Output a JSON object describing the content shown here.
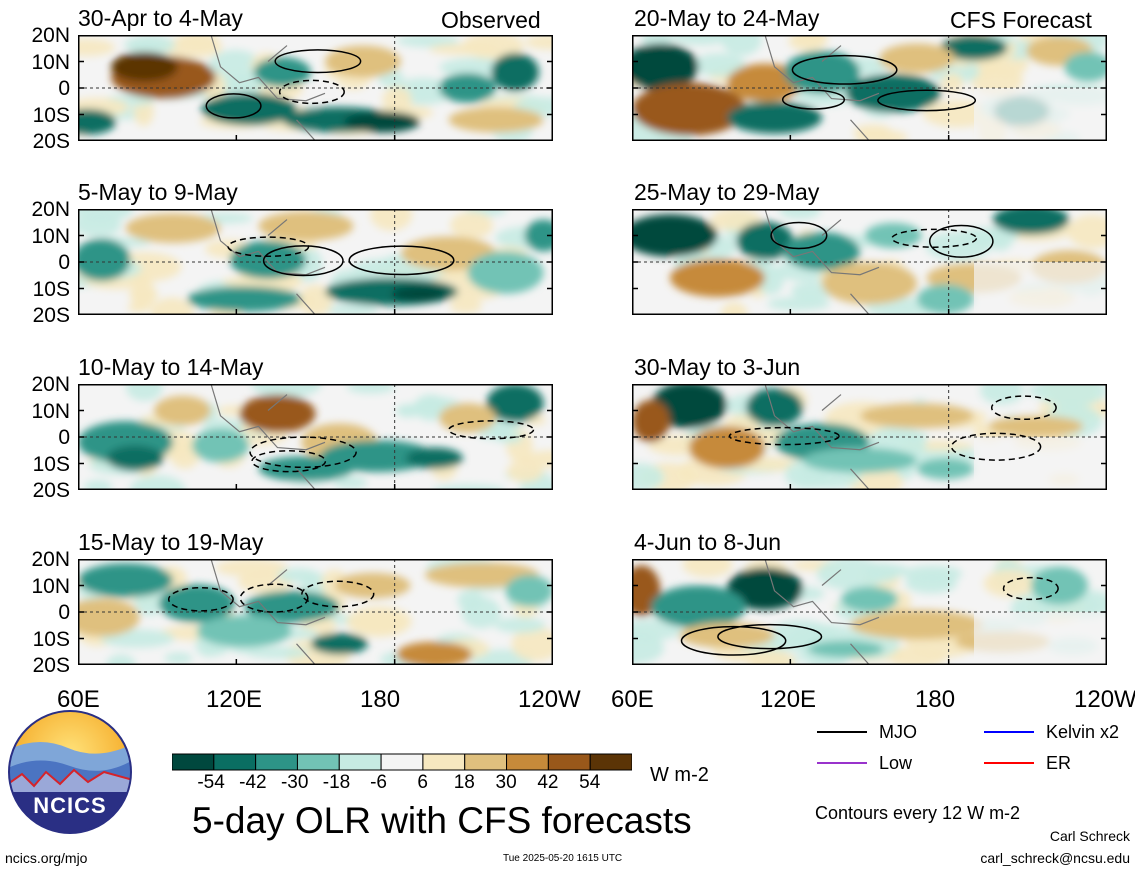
{
  "chart_data": {
    "type": "heatmap",
    "title": "5-day OLR with CFS forecasts",
    "units": "W m-2",
    "column_labels": {
      "left": "Observed",
      "right": "CFS Forecast"
    },
    "x_ticks": [
      "60E",
      "120E",
      "180",
      "120W"
    ],
    "x_range": [
      60,
      240
    ],
    "y_ticks": [
      "20N",
      "10N",
      "0",
      "10S",
      "20S"
    ],
    "y_range": [
      -20,
      20
    ],
    "color_scale": {
      "ticks": [
        "-54",
        "-42",
        "-30",
        "-18",
        "-6",
        "6",
        "18",
        "30",
        "42",
        "54"
      ],
      "colors": [
        "#00483e",
        "#0a6e62",
        "#2d9487",
        "#72c3b5",
        "#c6ebe3",
        "#f4f4f4",
        "#f6e8c0",
        "#dfc07e",
        "#c68a3a",
        "#99581a",
        "#5b3406"
      ]
    },
    "contour_note": "Contours every 12 W m-2",
    "legend": [
      {
        "label": "MJO",
        "color": "#000000"
      },
      {
        "label": "Kelvin x2",
        "color": "#0000ff"
      },
      {
        "label": "Low",
        "color": "#9933cc"
      },
      {
        "label": "ER",
        "color": "#ff0000"
      }
    ],
    "panels": [
      {
        "period": "30-Apr to 4-May",
        "kind": "Observed"
      },
      {
        "period": "5-May to 9-May",
        "kind": "Observed"
      },
      {
        "period": "10-May to 14-May",
        "kind": "Observed"
      },
      {
        "period": "15-May to 19-May",
        "kind": "Observed"
      },
      {
        "period": "20-May to 24-May",
        "kind": "CFS Forecast"
      },
      {
        "period": "25-May to 29-May",
        "kind": "CFS Forecast"
      },
      {
        "period": "30-May to 3-Jun",
        "kind": "CFS Forecast"
      },
      {
        "period": "4-Jun to 8-Jun",
        "kind": "CFS Forecast"
      }
    ]
  },
  "footer": {
    "logo_text": "NCICS",
    "url": "ncics.org/mjo",
    "timestamp": "Tue 2025-05-20 1615 UTC",
    "author": "Carl Schreck",
    "email": "carl_schreck@ncsu.edu"
  }
}
